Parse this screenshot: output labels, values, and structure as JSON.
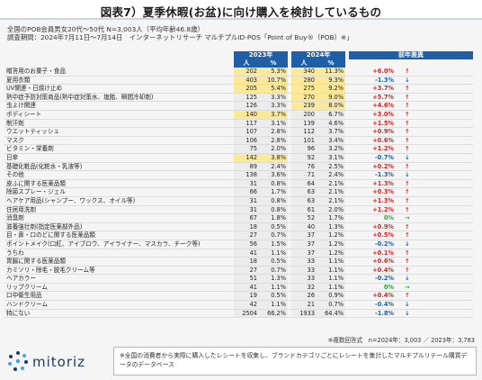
{
  "title": "図表7）夏季休暇(お盆)に向け購入を検討しているもの",
  "meta": {
    "line1": "全国のPOB会員男女20代〜50代 N=3,003人（平均年齢46.8歳）",
    "line2": "調査期間：2024年7月11日〜7月14日　インターネットリサーチ マルチプルID-POS「Point of Buy®（POB）※」"
  },
  "table": {
    "col_2023": "2023年",
    "col_2024": "2024年",
    "col_diff": "前年差異",
    "sub_person": "人",
    "sub_pct": "%",
    "rows": [
      {
        "label": "贈答用のお菓子・食品",
        "p23": "202",
        "r23": "5.3%",
        "p24": "340",
        "r24": "11.3%",
        "diff": "+6.0%",
        "dir": "pos",
        "arrow": "↑",
        "hl23": true,
        "hl24": true
      },
      {
        "label": "夏用衣類",
        "p23": "403",
        "r23": "10.7%",
        "p24": "280",
        "r24": "9.3%",
        "diff": "-1.3%",
        "dir": "neg",
        "arrow": "↓",
        "hl23": true,
        "hl24": true
      },
      {
        "label": "UV関連・日焼け止め",
        "p23": "205",
        "r23": "5.4%",
        "p24": "275",
        "r24": "9.2%",
        "diff": "+3.7%",
        "dir": "pos",
        "arrow": "↑",
        "hl23": true,
        "hl24": true
      },
      {
        "label": "熱中症予防対策商品(熱中症対策水、塩飴、瞬間冷却剤)",
        "p23": "125",
        "r23": "3.3%",
        "p24": "270",
        "r24": "9.0%",
        "diff": "+5.7%",
        "dir": "pos",
        "arrow": "↑",
        "hl23": false,
        "hl24": true
      },
      {
        "label": "虫よけ関連",
        "p23": "126",
        "r23": "3.3%",
        "p24": "239",
        "r24": "8.0%",
        "diff": "+4.6%",
        "dir": "pos",
        "arrow": "↑",
        "hl23": false,
        "hl24": true
      },
      {
        "label": "ボディシート",
        "p23": "140",
        "r23": "3.7%",
        "p24": "200",
        "r24": "6.7%",
        "diff": "+3.0%",
        "dir": "pos",
        "arrow": "↑",
        "hl23": true,
        "hl24": false
      },
      {
        "label": "制汗剤",
        "p23": "117",
        "r23": "3.1%",
        "p24": "139",
        "r24": "4.6%",
        "diff": "+1.5%",
        "dir": "pos",
        "arrow": "↑",
        "hl23": false,
        "hl24": false
      },
      {
        "label": "ウエットティッシュ",
        "p23": "107",
        "r23": "2.8%",
        "p24": "112",
        "r24": "3.7%",
        "diff": "+0.9%",
        "dir": "pos",
        "arrow": "↑",
        "hl23": false,
        "hl24": false
      },
      {
        "label": "マスク",
        "p23": "106",
        "r23": "2.8%",
        "p24": "101",
        "r24": "3.4%",
        "diff": "+0.6%",
        "dir": "pos",
        "arrow": "↑",
        "hl23": false,
        "hl24": false
      },
      {
        "label": "ビタミン・栄養剤",
        "p23": "75",
        "r23": "2.0%",
        "p24": "96",
        "r24": "3.2%",
        "diff": "+1.2%",
        "dir": "pos",
        "arrow": "↑",
        "hl23": false,
        "hl24": false
      },
      {
        "label": "日傘",
        "p23": "142",
        "r23": "3.8%",
        "p24": "92",
        "r24": "3.1%",
        "diff": "-0.7%",
        "dir": "neg",
        "arrow": "↓",
        "hl23": true,
        "hl24": false
      },
      {
        "label": "基礎化粧品(化粧水・乳液等)",
        "p23": "89",
        "r23": "2.4%",
        "p24": "76",
        "r24": "2.5%",
        "diff": "+0.2%",
        "dir": "pos",
        "arrow": "↑",
        "hl23": false,
        "hl24": false
      },
      {
        "label": "その他",
        "p23": "138",
        "r23": "3.6%",
        "p24": "71",
        "r24": "2.4%",
        "diff": "-1.3%",
        "dir": "neg",
        "arrow": "↓",
        "hl23": false,
        "hl24": false
      },
      {
        "label": "皮ふに関する医薬品類",
        "p23": "31",
        "r23": "0.8%",
        "p24": "64",
        "r24": "2.1%",
        "diff": "+1.3%",
        "dir": "pos",
        "arrow": "↑",
        "hl23": false,
        "hl24": false
      },
      {
        "label": "除菌スプレー・ジェル",
        "p23": "66",
        "r23": "1.7%",
        "p24": "63",
        "r24": "2.1%",
        "diff": "+0.3%",
        "dir": "pos",
        "arrow": "↑",
        "hl23": false,
        "hl24": false
      },
      {
        "label": "ヘアケア用品(シャンプー、ワックス、オイル等)",
        "p23": "31",
        "r23": "0.8%",
        "p24": "63",
        "r24": "2.1%",
        "diff": "+1.3%",
        "dir": "pos",
        "arrow": "↑",
        "hl23": false,
        "hl24": false
      },
      {
        "label": "住居用洗剤",
        "p23": "31",
        "r23": "0.8%",
        "p24": "61",
        "r24": "2.0%",
        "diff": "+1.2%",
        "dir": "pos",
        "arrow": "↑",
        "hl23": false,
        "hl24": false
      },
      {
        "label": "消臭剤",
        "p23": "67",
        "r23": "1.8%",
        "p24": "52",
        "r24": "1.7%",
        "diff": "0%",
        "dir": "zero",
        "arrow": "→",
        "hl23": false,
        "hl24": false
      },
      {
        "label": "滋養強壮剤(指定医薬部外品)",
        "p23": "18",
        "r23": "0.5%",
        "p24": "40",
        "r24": "1.3%",
        "diff": "+0.9%",
        "dir": "pos",
        "arrow": "↑",
        "hl23": false,
        "hl24": false
      },
      {
        "label": "目・鼻・口のどに関する医薬品類",
        "p23": "27",
        "r23": "0.7%",
        "p24": "37",
        "r24": "1.2%",
        "diff": "+0.5%",
        "dir": "pos",
        "arrow": "↑",
        "hl23": false,
        "hl24": false
      },
      {
        "label": "ポイントメイク(口紅、アイブロウ、アイライナー、マスカラ、チーク等)",
        "p23": "56",
        "r23": "1.5%",
        "p24": "37",
        "r24": "1.2%",
        "diff": "-0.2%",
        "dir": "neg",
        "arrow": "↓",
        "hl23": false,
        "hl24": false
      },
      {
        "label": "うちわ",
        "p23": "41",
        "r23": "1.1%",
        "p24": "37",
        "r24": "1.2%",
        "diff": "+0.1%",
        "dir": "pos",
        "arrow": "↑",
        "hl23": false,
        "hl24": false
      },
      {
        "label": "胃腸に関する医薬品類",
        "p23": "18",
        "r23": "0.5%",
        "p24": "33",
        "r24": "1.1%",
        "diff": "+0.6%",
        "dir": "pos",
        "arrow": "↑",
        "hl23": false,
        "hl24": false
      },
      {
        "label": "カミソリ・除毛・脱毛クリーム等",
        "p23": "27",
        "r23": "0.7%",
        "p24": "33",
        "r24": "1.1%",
        "diff": "+0.4%",
        "dir": "pos",
        "arrow": "↑",
        "hl23": false,
        "hl24": false
      },
      {
        "label": "ヘアカラー",
        "p23": "51",
        "r23": "1.3%",
        "p24": "33",
        "r24": "1.1%",
        "diff": "-0.2%",
        "dir": "neg",
        "arrow": "↓",
        "hl23": false,
        "hl24": false
      },
      {
        "label": "リップクリーム",
        "p23": "41",
        "r23": "1.1%",
        "p24": "32",
        "r24": "1.1%",
        "diff": "0%",
        "dir": "zero",
        "arrow": "→",
        "hl23": false,
        "hl24": false
      },
      {
        "label": "口中衛生用品",
        "p23": "19",
        "r23": "0.5%",
        "p24": "26",
        "r24": "0.9%",
        "diff": "+0.4%",
        "dir": "pos",
        "arrow": "↑",
        "hl23": false,
        "hl24": false
      },
      {
        "label": "ハンドクリーム",
        "p23": "42",
        "r23": "1.1%",
        "p24": "21",
        "r24": "0.7%",
        "diff": "-0.4%",
        "dir": "neg",
        "arrow": "↓",
        "hl23": false,
        "hl24": false
      },
      {
        "label": "特にない",
        "p23": "2504",
        "r23": "66.2%",
        "p24": "1933",
        "r24": "64.4%",
        "diff": "-1.8%",
        "dir": "neg",
        "arrow": "↓",
        "hl23": false,
        "hl24": false
      }
    ]
  },
  "footnote_right": "※複数回答式　n=2024年：3,003 ／ 2023年：3,783",
  "logo_text": "mitoriz",
  "note": "※全国の消費者から実際に購入したレシートを収集し、ブランドカテゴリごとにレシートを集計したマルチプルリテール購買データのデータベース",
  "colors": {
    "header_blue": "#1f5fa7",
    "highlight": "#fbe998",
    "positive": "#d92020",
    "negative": "#1f5fa7",
    "neutral": "#2aa43a"
  }
}
